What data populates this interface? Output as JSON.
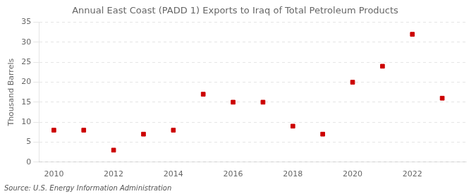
{
  "chart_data": {
    "type": "scatter",
    "title": "Annual East Coast (PADD 1) Exports to Iraq of Total Petroleum Products",
    "ylabel": "Thousand Barrels",
    "annotations": [
      "Source: U.S. Energy Information Administration"
    ],
    "x": [
      2010,
      2011,
      2012,
      2013,
      2014,
      2015,
      2016,
      2017,
      2018,
      2019,
      2020,
      2021,
      2022,
      2023
    ],
    "values": [
      8,
      8,
      3,
      7,
      8,
      17,
      15,
      15,
      9,
      7,
      20,
      24,
      32,
      16
    ],
    "color": "#cc0000",
    "marker": "square",
    "xlim": [
      2009.5,
      2023.8
    ],
    "xticks": [
      2010,
      2012,
      2014,
      2016,
      2018,
      2020,
      2022
    ],
    "ylim": [
      0,
      35
    ],
    "yticks": [
      0,
      5,
      10,
      15,
      20,
      25,
      30,
      35
    ],
    "grid": "y"
  }
}
